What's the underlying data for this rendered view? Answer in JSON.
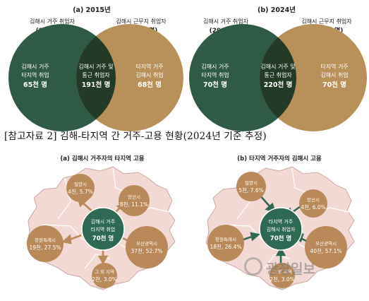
{
  "venn_2015": {
    "heading": "(a) 2015년",
    "left_label_1": "김해시 거주 취업자",
    "left_label_2": "(256천 명)",
    "right_label_1": "김해시 근무지 취업자",
    "right_label_2": "(259천 명)",
    "left_inner_1": "김해시 거주",
    "left_inner_2": "타지역 취업",
    "left_inner_3": "65천 명",
    "mid_1": "김해시 거주 및",
    "mid_2": "통근 취업자",
    "mid_3": "191천 명",
    "right_inner_1": "타지역 거주",
    "right_inner_2": "김해시 취업",
    "right_inner_3": "68천 명"
  },
  "venn_2024": {
    "heading": "(b) 2024년",
    "left_label_1": "김해시 거주 취업자",
    "left_label_2": "(290천 명)",
    "right_label_1": "김해시 근무지 취업자",
    "right_label_2": "(290천 명)",
    "left_inner_1": "김해시 거주",
    "left_inner_2": "타지역 취업",
    "left_inner_3": "70천 명",
    "mid_1": "김해시 거주 및",
    "mid_2": "통근 취업자",
    "mid_3": "220천 명",
    "right_inner_1": "타지역 거주",
    "right_inner_2": "김해시 취업",
    "right_inner_3": "70천 명"
  },
  "reference_title": "[참고자료 2] 김해-타지역 간 거주-고용 현황(2024년 기준 추정)",
  "map_a": {
    "heading": "(a) 김해시 거주자의 타지역 고용",
    "center_1": "김해시 거주",
    "center_2": "타지역 취업",
    "center_3": "70천 명",
    "miryang_1": "밀양시",
    "miryang_2": "4천, 5.7%",
    "yangsan_1": "양산시",
    "yangsan_2": "8천, 11.1%",
    "changwon_1": "창원특례시",
    "changwon_2": "19천, 27.5%",
    "busan_1": "부산광역시",
    "busan_2": "37천, 52.7%",
    "other_1": "그 외 지역",
    "other_2": "2천, 3.0%"
  },
  "map_b": {
    "heading": "(b) 타지역 거주자의 김해시 고용",
    "center_1": "타지역 거주",
    "center_2": "김해시 취업자",
    "center_3": "70천 명",
    "miryang_1": "밀양시",
    "miryang_2": "5천, 7.6%",
    "yangsan_1": "양산시",
    "yangsan_2": "4천, 6.0%",
    "changwon_1": "창원특례시",
    "changwon_2": "18천, 26.4%",
    "busan_1": "부산광역시",
    "busan_2": "40천, 57.1%",
    "other_1": "그 외 지역",
    "other_2": "2천, 3.0%"
  },
  "watermark": "광장일보",
  "colors": {
    "green": "#2f5a45",
    "brown": "#b89059",
    "overlap": "#233a26",
    "map_fill": "#f2d9d3",
    "map_stroke": "#c9aaa3",
    "circle_brown": "#b9895a",
    "circle_green": "#2e6a53"
  }
}
